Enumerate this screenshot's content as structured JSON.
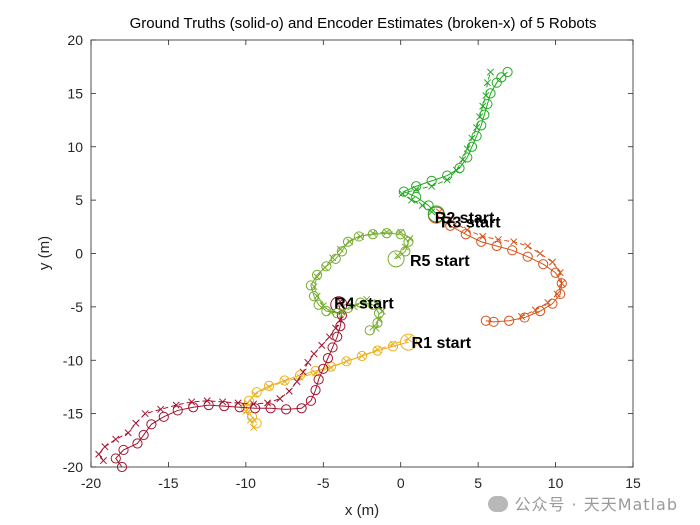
{
  "chart_data": {
    "type": "line",
    "title": "Ground Truths (solid-o) and Encoder Estimates (broken-x) of 5 Robots",
    "xlabel": "x (m)",
    "ylabel": "y (m)",
    "xlim": [
      -20,
      15
    ],
    "ylim": [
      -20,
      20
    ],
    "xticks": [
      -20,
      -15,
      -10,
      -5,
      0,
      5,
      10,
      15
    ],
    "yticks": [
      -20,
      -15,
      -10,
      -5,
      0,
      5,
      10,
      15,
      20
    ],
    "grid": false,
    "series": [
      {
        "color": "#edb120",
        "truth": [
          [
            0.5,
            -8.3
          ],
          [
            -0.5,
            -8.7
          ],
          [
            -1.5,
            -9.1
          ],
          [
            -2.5,
            -9.6
          ],
          [
            -3.5,
            -10.1
          ],
          [
            -4.5,
            -10.6
          ],
          [
            -5.5,
            -11.0
          ],
          [
            -6.5,
            -11.4
          ],
          [
            -7.5,
            -11.9
          ],
          [
            -8.5,
            -12.4
          ],
          [
            -9.3,
            -13.0
          ],
          [
            -9.8,
            -13.8
          ],
          [
            -10.0,
            -14.5
          ],
          [
            -9.6,
            -15.3
          ],
          [
            -9.3,
            -15.9
          ]
        ],
        "estimate": [
          [
            0.5,
            -8.0
          ],
          [
            -0.5,
            -8.5
          ],
          [
            -1.5,
            -9.0
          ],
          [
            -2.5,
            -9.6
          ],
          [
            -3.5,
            -10.1
          ],
          [
            -4.5,
            -10.7
          ],
          [
            -5.5,
            -11.2
          ],
          [
            -6.5,
            -11.6
          ],
          [
            -7.5,
            -12.0
          ],
          [
            -8.5,
            -12.5
          ],
          [
            -9.4,
            -13.2
          ],
          [
            -9.9,
            -14.0
          ],
          [
            -10.0,
            -14.8
          ],
          [
            -9.7,
            -15.6
          ],
          [
            -9.5,
            -16.3
          ]
        ]
      },
      {
        "color": "#d95319",
        "truth": [
          [
            2.3,
            3.6
          ],
          [
            3.2,
            2.6
          ],
          [
            4.2,
            1.8
          ],
          [
            5.2,
            1.1
          ],
          [
            6.2,
            0.7
          ],
          [
            7.2,
            0.3
          ],
          [
            8.2,
            -0.3
          ],
          [
            9.2,
            -1.0
          ],
          [
            10.0,
            -1.8
          ],
          [
            10.4,
            -2.8
          ],
          [
            10.3,
            -3.8
          ],
          [
            9.8,
            -4.7
          ],
          [
            9.0,
            -5.4
          ],
          [
            8.0,
            -6.0
          ],
          [
            7.0,
            -6.3
          ],
          [
            6.0,
            -6.4
          ],
          [
            5.5,
            -6.3
          ]
        ],
        "estimate": [
          [
            2.5,
            3.9
          ],
          [
            3.3,
            3.0
          ],
          [
            4.3,
            2.2
          ],
          [
            5.3,
            1.6
          ],
          [
            6.3,
            1.3
          ],
          [
            7.3,
            1.1
          ],
          [
            8.2,
            0.7
          ],
          [
            9.0,
            0.0
          ],
          [
            9.8,
            -0.8
          ],
          [
            10.3,
            -1.8
          ],
          [
            10.4,
            -2.8
          ],
          [
            10.1,
            -3.8
          ],
          [
            9.5,
            -4.6
          ],
          [
            8.7,
            -5.3
          ],
          [
            7.8,
            -5.9
          ]
        ]
      },
      {
        "color": "#22aa22",
        "truth": [
          [
            2.3,
            3.7
          ],
          [
            1.8,
            4.5
          ],
          [
            1.0,
            5.3
          ],
          [
            0.2,
            5.8
          ],
          [
            1.0,
            6.3
          ],
          [
            2.0,
            6.8
          ],
          [
            3.0,
            7.3
          ],
          [
            3.8,
            8.0
          ],
          [
            4.3,
            9.0
          ],
          [
            4.6,
            10.0
          ],
          [
            4.9,
            11.0
          ],
          [
            5.2,
            12.0
          ],
          [
            5.4,
            13.0
          ],
          [
            5.6,
            14.0
          ],
          [
            5.8,
            15.0
          ],
          [
            6.2,
            16.0
          ],
          [
            6.5,
            16.5
          ],
          [
            6.9,
            17.0
          ]
        ],
        "estimate": [
          [
            2.0,
            3.9
          ],
          [
            1.4,
            4.5
          ],
          [
            0.7,
            5.0
          ],
          [
            0.1,
            5.6
          ],
          [
            1.0,
            6.0
          ],
          [
            2.0,
            6.3
          ],
          [
            3.0,
            6.9
          ],
          [
            3.6,
            7.8
          ],
          [
            4.0,
            8.8
          ],
          [
            4.3,
            9.8
          ],
          [
            4.6,
            10.8
          ],
          [
            4.9,
            11.8
          ],
          [
            5.1,
            12.8
          ],
          [
            5.3,
            13.8
          ],
          [
            5.5,
            14.8
          ],
          [
            5.6,
            16.0
          ],
          [
            5.8,
            17.0
          ]
        ]
      },
      {
        "color": "#a2142f",
        "truth": [
          [
            -4.0,
            -4.8
          ],
          [
            -3.8,
            -5.8
          ],
          [
            -3.9,
            -6.8
          ],
          [
            -4.1,
            -7.8
          ],
          [
            -4.4,
            -8.8
          ],
          [
            -4.7,
            -9.8
          ],
          [
            -5.0,
            -10.8
          ],
          [
            -5.3,
            -11.8
          ],
          [
            -5.5,
            -12.8
          ],
          [
            -5.8,
            -13.8
          ],
          [
            -6.4,
            -14.5
          ],
          [
            -7.4,
            -14.6
          ],
          [
            -8.4,
            -14.5
          ],
          [
            -9.4,
            -14.5
          ],
          [
            -10.4,
            -14.4
          ],
          [
            -11.4,
            -14.3
          ],
          [
            -12.4,
            -14.2
          ],
          [
            -13.4,
            -14.4
          ],
          [
            -14.4,
            -14.7
          ],
          [
            -15.3,
            -15.3
          ],
          [
            -16.1,
            -16.0
          ],
          [
            -16.6,
            -17.0
          ],
          [
            -17.0,
            -17.8
          ],
          [
            -17.9,
            -18.4
          ],
          [
            -18.4,
            -19.2
          ],
          [
            -18.0,
            -20.0
          ]
        ],
        "estimate": [
          [
            -3.9,
            -4.5
          ],
          [
            -3.8,
            -5.4
          ],
          [
            -3.9,
            -6.2
          ],
          [
            -4.2,
            -7.0
          ],
          [
            -4.6,
            -7.8
          ],
          [
            -5.1,
            -8.6
          ],
          [
            -5.6,
            -9.4
          ],
          [
            -6.0,
            -10.2
          ],
          [
            -6.3,
            -11.1
          ],
          [
            -6.7,
            -12.0
          ],
          [
            -7.2,
            -12.9
          ],
          [
            -7.8,
            -13.6
          ],
          [
            -8.6,
            -14.0
          ],
          [
            -9.5,
            -14.1
          ],
          [
            -10.5,
            -14.0
          ],
          [
            -11.5,
            -13.9
          ],
          [
            -12.5,
            -13.8
          ],
          [
            -13.5,
            -13.9
          ],
          [
            -14.5,
            -14.2
          ],
          [
            -15.5,
            -14.6
          ],
          [
            -16.5,
            -15.0
          ],
          [
            -17.1,
            -15.9
          ],
          [
            -17.6,
            -16.8
          ],
          [
            -18.4,
            -17.4
          ],
          [
            -19.1,
            -18.1
          ],
          [
            -19.5,
            -18.8
          ],
          [
            -19.2,
            -19.4
          ]
        ]
      },
      {
        "color": "#77ac30",
        "truth": [
          [
            -0.3,
            -0.5
          ],
          [
            0.3,
            0.2
          ],
          [
            0.5,
            1.1
          ],
          [
            0.0,
            1.8
          ],
          [
            -0.9,
            1.9
          ],
          [
            -1.8,
            1.8
          ],
          [
            -2.7,
            1.6
          ],
          [
            -3.4,
            1.1
          ],
          [
            -3.8,
            0.2
          ],
          [
            -4.2,
            -0.5
          ],
          [
            -4.8,
            -1.2
          ],
          [
            -5.4,
            -2.0
          ],
          [
            -5.8,
            -3.0
          ],
          [
            -5.6,
            -4.0
          ],
          [
            -5.3,
            -4.8
          ],
          [
            -4.8,
            -5.4
          ],
          [
            -4.1,
            -5.6
          ],
          [
            -3.4,
            -5.1
          ],
          [
            -2.6,
            -4.6
          ],
          [
            -1.8,
            -4.8
          ],
          [
            -1.4,
            -5.6
          ],
          [
            -1.5,
            -6.5
          ],
          [
            -2.0,
            -7.2
          ]
        ],
        "estimate": [
          [
            -0.2,
            -0.2
          ],
          [
            0.3,
            0.6
          ],
          [
            0.6,
            1.4
          ],
          [
            0.0,
            2.0
          ],
          [
            -0.9,
            2.0
          ],
          [
            -1.8,
            1.9
          ],
          [
            -2.6,
            1.6
          ],
          [
            -3.3,
            1.1
          ],
          [
            -3.9,
            0.4
          ],
          [
            -4.4,
            -0.4
          ],
          [
            -4.9,
            -1.3
          ],
          [
            -5.4,
            -2.2
          ],
          [
            -5.6,
            -3.1
          ],
          [
            -5.4,
            -4.0
          ],
          [
            -5.0,
            -4.9
          ],
          [
            -4.5,
            -5.5
          ],
          [
            -3.8,
            -5.5
          ],
          [
            -3.0,
            -5.0
          ],
          [
            -2.2,
            -4.3
          ],
          [
            -1.5,
            -4.6
          ],
          [
            -1.2,
            -5.4
          ],
          [
            -1.4,
            -6.2
          ],
          [
            -1.6,
            -7.0
          ]
        ]
      }
    ],
    "annotations": [
      {
        "text": "R1 start",
        "x": 0.7,
        "y": -8.3
      },
      {
        "text": "R2 start",
        "x": 2.2,
        "y": 3.4
      },
      {
        "text": "R3 start",
        "x": 2.6,
        "y": 3.0
      },
      {
        "text": "R4 start",
        "x": -4.3,
        "y": -4.6
      },
      {
        "text": "R5 start",
        "x": 0.6,
        "y": -0.6
      }
    ]
  },
  "watermark": "公众号 · 天天Matlab"
}
